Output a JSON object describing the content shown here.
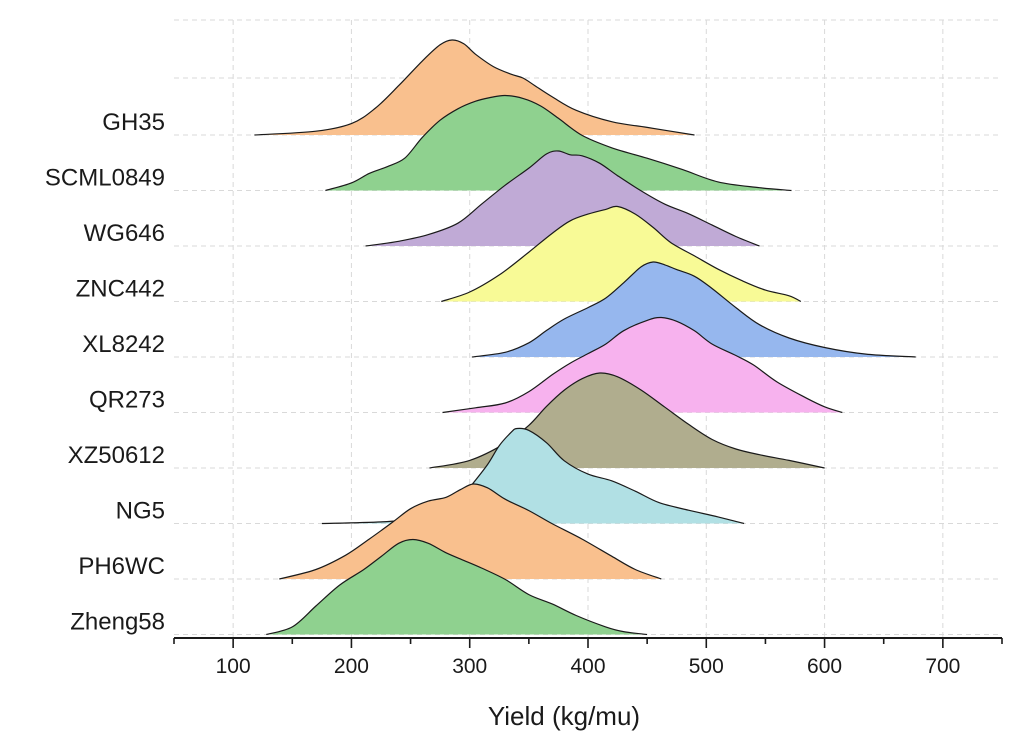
{
  "chart_data": {
    "type": "ridgeline",
    "title": "",
    "xlabel": "Yield (kg/mu)",
    "ylabel": "",
    "xlim": [
      50,
      750
    ],
    "xticks": [
      100,
      200,
      300,
      400,
      500,
      600,
      700
    ],
    "grid": true,
    "series": [
      {
        "name": "GH35",
        "color": "#f9c08e",
        "density": [
          [
            118,
            0
          ],
          [
            170,
            0.04
          ],
          [
            200,
            0.12
          ],
          [
            220,
            0.28
          ],
          [
            240,
            0.52
          ],
          [
            260,
            0.78
          ],
          [
            275,
            0.95
          ],
          [
            285,
            1.0
          ],
          [
            295,
            0.96
          ],
          [
            305,
            0.85
          ],
          [
            320,
            0.72
          ],
          [
            335,
            0.64
          ],
          [
            345,
            0.6
          ],
          [
            355,
            0.52
          ],
          [
            370,
            0.4
          ],
          [
            390,
            0.26
          ],
          [
            420,
            0.14
          ],
          [
            450,
            0.08
          ],
          [
            490,
            0
          ]
        ]
      },
      {
        "name": "SCML0849",
        "color": "#8fd18f",
        "density": [
          [
            178,
            0
          ],
          [
            200,
            0.08
          ],
          [
            215,
            0.18
          ],
          [
            230,
            0.25
          ],
          [
            245,
            0.34
          ],
          [
            260,
            0.56
          ],
          [
            275,
            0.74
          ],
          [
            290,
            0.86
          ],
          [
            305,
            0.94
          ],
          [
            318,
            0.98
          ],
          [
            330,
            1.0
          ],
          [
            345,
            0.97
          ],
          [
            360,
            0.89
          ],
          [
            375,
            0.76
          ],
          [
            395,
            0.58
          ],
          [
            420,
            0.45
          ],
          [
            450,
            0.34
          ],
          [
            480,
            0.22
          ],
          [
            510,
            0.09
          ],
          [
            545,
            0.03
          ],
          [
            572,
            0
          ]
        ]
      },
      {
        "name": "WG646",
        "color": "#c0aad6",
        "density": [
          [
            212,
            0
          ],
          [
            240,
            0.05
          ],
          [
            265,
            0.12
          ],
          [
            290,
            0.24
          ],
          [
            310,
            0.44
          ],
          [
            330,
            0.64
          ],
          [
            350,
            0.82
          ],
          [
            365,
            0.97
          ],
          [
            375,
            1.0
          ],
          [
            385,
            0.96
          ],
          [
            395,
            0.95
          ],
          [
            410,
            0.87
          ],
          [
            425,
            0.74
          ],
          [
            445,
            0.58
          ],
          [
            465,
            0.44
          ],
          [
            485,
            0.34
          ],
          [
            505,
            0.22
          ],
          [
            525,
            0.1
          ],
          [
            545,
            0
          ]
        ]
      },
      {
        "name": "ZNC442",
        "color": "#f8fa96",
        "density": [
          [
            276,
            0
          ],
          [
            300,
            0.1
          ],
          [
            325,
            0.28
          ],
          [
            350,
            0.52
          ],
          [
            370,
            0.72
          ],
          [
            385,
            0.85
          ],
          [
            400,
            0.92
          ],
          [
            415,
            0.97
          ],
          [
            425,
            1.0
          ],
          [
            440,
            0.92
          ],
          [
            455,
            0.78
          ],
          [
            470,
            0.62
          ],
          [
            490,
            0.48
          ],
          [
            510,
            0.34
          ],
          [
            530,
            0.22
          ],
          [
            550,
            0.12
          ],
          [
            570,
            0.06
          ],
          [
            580,
            0
          ]
        ]
      },
      {
        "name": "XL8242",
        "color": "#96b7ee",
        "density": [
          [
            302,
            0
          ],
          [
            330,
            0.05
          ],
          [
            350,
            0.15
          ],
          [
            365,
            0.28
          ],
          [
            380,
            0.4
          ],
          [
            400,
            0.52
          ],
          [
            415,
            0.62
          ],
          [
            430,
            0.78
          ],
          [
            445,
            0.95
          ],
          [
            455,
            1.0
          ],
          [
            465,
            0.97
          ],
          [
            475,
            0.92
          ],
          [
            490,
            0.85
          ],
          [
            505,
            0.72
          ],
          [
            525,
            0.52
          ],
          [
            545,
            0.34
          ],
          [
            570,
            0.2
          ],
          [
            600,
            0.1
          ],
          [
            635,
            0.03
          ],
          [
            677,
            0
          ]
        ]
      },
      {
        "name": "QR273",
        "color": "#f7b2ee",
        "density": [
          [
            277,
            0
          ],
          [
            305,
            0.05
          ],
          [
            330,
            0.1
          ],
          [
            350,
            0.22
          ],
          [
            370,
            0.4
          ],
          [
            385,
            0.52
          ],
          [
            400,
            0.62
          ],
          [
            415,
            0.72
          ],
          [
            430,
            0.86
          ],
          [
            450,
            0.97
          ],
          [
            462,
            1.0
          ],
          [
            475,
            0.96
          ],
          [
            490,
            0.86
          ],
          [
            505,
            0.72
          ],
          [
            525,
            0.6
          ],
          [
            540,
            0.5
          ],
          [
            560,
            0.32
          ],
          [
            585,
            0.15
          ],
          [
            600,
            0.06
          ],
          [
            615,
            0
          ]
        ]
      },
      {
        "name": "XZ50612",
        "color": "#b0ad8e",
        "density": [
          [
            266,
            0
          ],
          [
            300,
            0.08
          ],
          [
            330,
            0.26
          ],
          [
            350,
            0.45
          ],
          [
            365,
            0.65
          ],
          [
            380,
            0.82
          ],
          [
            395,
            0.94
          ],
          [
            410,
            1.0
          ],
          [
            425,
            0.96
          ],
          [
            445,
            0.82
          ],
          [
            465,
            0.64
          ],
          [
            485,
            0.46
          ],
          [
            505,
            0.3
          ],
          [
            525,
            0.2
          ],
          [
            545,
            0.14
          ],
          [
            570,
            0.08
          ],
          [
            600,
            0
          ]
        ]
      },
      {
        "name": "NG5",
        "color": "#b1e0e4",
        "density": [
          [
            175,
            0
          ],
          [
            230,
            0.02
          ],
          [
            260,
            0.06
          ],
          [
            285,
            0.16
          ],
          [
            300,
            0.38
          ],
          [
            315,
            0.62
          ],
          [
            325,
            0.82
          ],
          [
            335,
            0.96
          ],
          [
            340,
            1.0
          ],
          [
            350,
            0.98
          ],
          [
            365,
            0.85
          ],
          [
            380,
            0.66
          ],
          [
            400,
            0.52
          ],
          [
            420,
            0.45
          ],
          [
            440,
            0.34
          ],
          [
            460,
            0.22
          ],
          [
            485,
            0.14
          ],
          [
            510,
            0.07
          ],
          [
            532,
            0
          ]
        ]
      },
      {
        "name": "PH6WC",
        "color": "#f9c08e",
        "density": [
          [
            139,
            0
          ],
          [
            170,
            0.1
          ],
          [
            195,
            0.25
          ],
          [
            215,
            0.42
          ],
          [
            235,
            0.6
          ],
          [
            250,
            0.74
          ],
          [
            265,
            0.82
          ],
          [
            280,
            0.86
          ],
          [
            292,
            0.94
          ],
          [
            303,
            1.0
          ],
          [
            315,
            0.96
          ],
          [
            330,
            0.84
          ],
          [
            350,
            0.72
          ],
          [
            370,
            0.58
          ],
          [
            395,
            0.42
          ],
          [
            420,
            0.24
          ],
          [
            440,
            0.1
          ],
          [
            462,
            0
          ]
        ]
      },
      {
        "name": "Zheng58",
        "color": "#8fd18f",
        "density": [
          [
            128,
            0
          ],
          [
            150,
            0.08
          ],
          [
            170,
            0.3
          ],
          [
            190,
            0.52
          ],
          [
            210,
            0.68
          ],
          [
            225,
            0.82
          ],
          [
            240,
            0.96
          ],
          [
            252,
            1.0
          ],
          [
            265,
            0.96
          ],
          [
            280,
            0.86
          ],
          [
            295,
            0.78
          ],
          [
            310,
            0.7
          ],
          [
            330,
            0.58
          ],
          [
            350,
            0.42
          ],
          [
            370,
            0.32
          ],
          [
            390,
            0.2
          ],
          [
            415,
            0.08
          ],
          [
            430,
            0.03
          ],
          [
            450,
            0
          ]
        ]
      }
    ]
  }
}
